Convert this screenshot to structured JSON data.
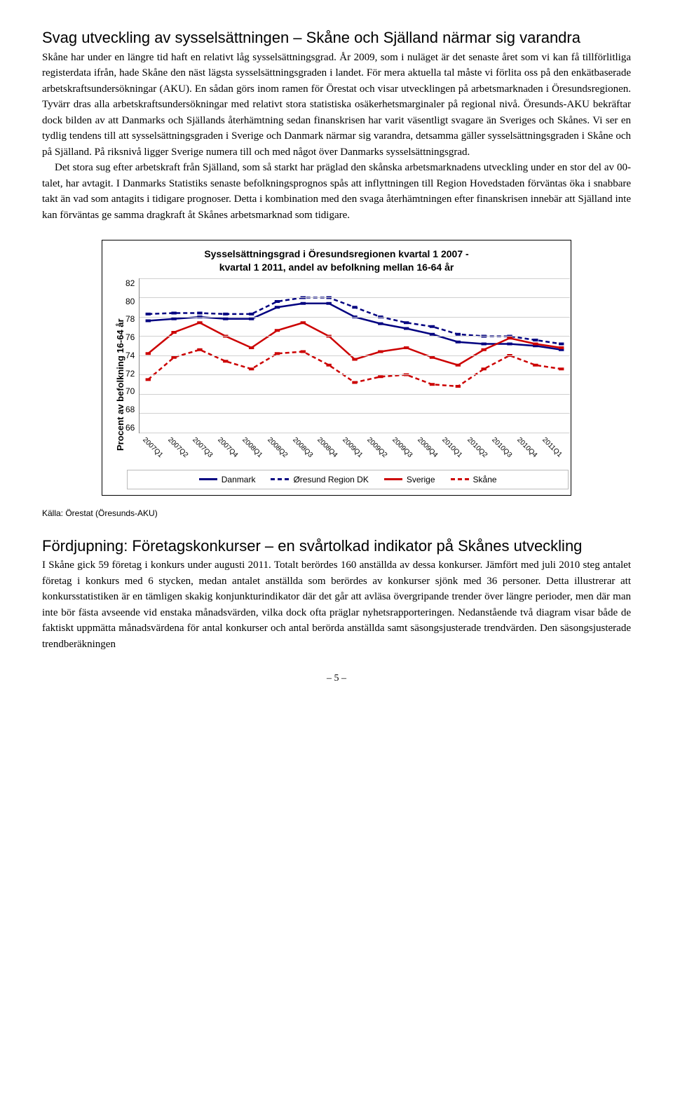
{
  "section1": {
    "heading": "Svag utveckling av sysselsättningen – Skåne och Själland närmar sig varandra",
    "p1": "Skåne har under en längre tid haft en relativt låg sysselsättningsgrad. År 2009, som i nuläget är det senaste året som vi kan få tillförlitliga registerdata ifrån, hade Skåne den näst lägsta sysselsättningsgraden i landet. För mera aktuella tal måste vi förlita oss på den enkätbaserade arbetskraftsundersökningar (AKU). En sådan görs inom ramen för Örestat och visar utvecklingen på arbetsmarknaden i Öresundsregionen. Tyvärr dras alla arbetskraftsundersökningar med relativt stora statistiska osäkerhetsmarginaler på regional nivå. Öresunds-AKU bekräftar dock bilden av att Danmarks och Själlands återhämtning sedan finanskrisen har varit väsentligt svagare än Sveriges och Skånes. Vi ser en tydlig tendens till att sysselsättningsgraden i Sverige och Danmark närmar sig varandra, detsamma gäller sysselsättningsgraden i Skåne och på Själland. På riksnivå ligger Sverige numera till och med något över Danmarks sysselsättningsgrad.",
    "p2": "Det stora sug efter arbetskraft från Själland, som så starkt har präglad den skånska arbetsmarknadens utveckling under en stor del av 00-talet, har avtagit. I Danmarks Statistiks senaste befolkningsprognos spås att inflyttningen till Region Hovedstaden förväntas öka i snabbare takt än vad som antagits i tidigare prognoser. Detta i kombination med den svaga återhämtningen efter finanskrisen innebär att Själland inte kan förväntas ge samma dragkraft åt Skånes arbetsmarknad som tidigare."
  },
  "chart": {
    "title_line1": "Sysselsättningsgrad i Öresundsregionen kvartal 1 2007 -",
    "title_line2": "kvartal 1 2011, andel av befolkning mellan 16-64 år",
    "y_label": "Procent av befolkning 16-64 år",
    "ylim": [
      66,
      82
    ],
    "ytick_step": 2,
    "yticks": [
      "82",
      "80",
      "78",
      "76",
      "74",
      "72",
      "70",
      "68",
      "66"
    ],
    "x_categories": [
      "2007Q1",
      "2007Q2",
      "2007Q3",
      "2007Q4",
      "2008Q1",
      "2008Q2",
      "2008Q3",
      "2008Q4",
      "2009Q1",
      "2009Q2",
      "2009Q3",
      "2009Q4",
      "2010Q1",
      "2010Q2",
      "2010Q3",
      "2010Q4",
      "2011Q1"
    ],
    "grid_color": "#d0d0d0",
    "series": [
      {
        "name": "Danmark",
        "color": "#000080",
        "dash": "",
        "width": 2.5,
        "marker": "square",
        "values": [
          77.6,
          77.8,
          78.0,
          77.8,
          77.8,
          79.0,
          79.4,
          79.4,
          78.0,
          77.3,
          76.8,
          76.2,
          75.4,
          75.2,
          75.2,
          75.0,
          74.6
        ]
      },
      {
        "name": "Øresund Region DK",
        "color": "#000080",
        "dash": "6,4",
        "width": 2.5,
        "marker": "square",
        "values": [
          78.3,
          78.4,
          78.4,
          78.3,
          78.3,
          79.6,
          80.0,
          80.0,
          79.0,
          78.0,
          77.4,
          77.0,
          76.2,
          76.0,
          76.0,
          75.6,
          75.2
        ]
      },
      {
        "name": "Sverige",
        "color": "#cc0000",
        "dash": "",
        "width": 2.5,
        "marker": "square",
        "values": [
          74.2,
          76.4,
          77.4,
          76.0,
          74.8,
          76.6,
          77.4,
          76.0,
          73.6,
          74.4,
          74.8,
          73.8,
          73.0,
          74.6,
          75.8,
          75.2,
          74.8
        ]
      },
      {
        "name": "Skåne",
        "color": "#cc0000",
        "dash": "6,4",
        "width": 2.5,
        "marker": "square",
        "values": [
          71.5,
          73.8,
          74.6,
          73.4,
          72.6,
          74.2,
          74.4,
          73.0,
          71.2,
          71.8,
          72.0,
          71.0,
          70.8,
          72.6,
          74.0,
          73.0,
          72.6
        ]
      }
    ],
    "legend": [
      {
        "label": "Danmark",
        "color": "#000080",
        "dash": ""
      },
      {
        "label": "Øresund Region DK",
        "color": "#000080",
        "dash": "6,4"
      },
      {
        "label": "Sverige",
        "color": "#cc0000",
        "dash": ""
      },
      {
        "label": "Skåne",
        "color": "#cc0000",
        "dash": "6,4"
      }
    ]
  },
  "source": "Källa: Örestat (Öresunds-AKU)",
  "section2": {
    "heading": "Fördjupning: Företagskonkurser – en svårtolkad indikator på Skånes utveckling",
    "p1": "I Skåne gick 59 företag i konkurs under augusti 2011. Totalt berördes 160 anställda av dessa konkurser. Jämfört med juli 2010 steg antalet företag i konkurs med 6 stycken, medan antalet anställda som berördes av konkurser sjönk med 36 personer. Detta illustrerar att konkursstatistiken är en tämligen skakig konjunkturindikator där det går att avläsa övergripande trender över längre perioder, men där man inte bör fästa avseende vid enstaka månadsvärden, vilka dock ofta präglar nyhetsrapporteringen. Nedanstående två diagram visar både de faktiskt uppmätta månadsvärdena för antal konkurser och antal berörda anställda samt säsongsjusterade trendvärden. Den säsongsjusterade trendberäkningen"
  },
  "page_num": "– 5 –"
}
